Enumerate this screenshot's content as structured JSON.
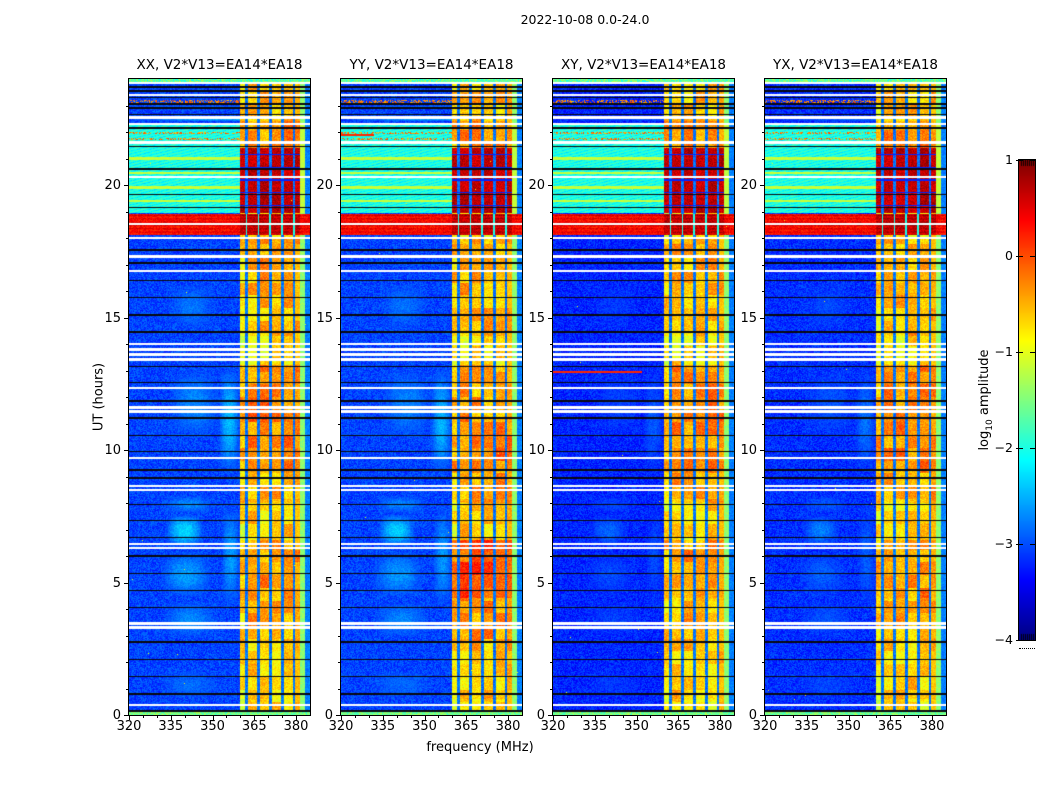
{
  "figure": {
    "title": "2022-10-08 0.0-24.0",
    "xlabel": "frequency (MHz)",
    "ylabel": "UT (hours)",
    "colorbar_label_pre": "log",
    "colorbar_label_sub": "10",
    "colorbar_label_post": " amplitude"
  },
  "chart_data": {
    "type": "heatmap",
    "title": "2022-10-08 0.0-24.0",
    "xlabel": "frequency (MHz)",
    "ylabel": "UT (hours)",
    "x_range": [
      320,
      385
    ],
    "y_range": [
      0,
      24
    ],
    "x_ticks": [
      320,
      335,
      350,
      365,
      380
    ],
    "x_tick_labels": [
      "320",
      "335",
      "350",
      "365",
      "380"
    ],
    "x_minor_ticks": [
      325,
      330,
      340,
      345,
      355,
      360,
      370,
      375
    ],
    "y_ticks": [
      0,
      5,
      10,
      15,
      20
    ],
    "y_tick_labels": [
      "0",
      "5",
      "10",
      "15",
      "20"
    ],
    "colorbar": {
      "label": "log10 amplitude",
      "cmap": "jet",
      "vmin": -4,
      "vmax": 1,
      "ticks": [
        1,
        0,
        -1,
        -2,
        -3,
        -4
      ],
      "tick_labels": [
        "1",
        "0",
        "−1",
        "−2",
        "−3",
        "−4"
      ],
      "end_hatch": true
    },
    "panels": [
      {
        "label": "XX",
        "title": "XX, V2*V13=EA14*EA18",
        "seed": 11,
        "background": -3.3,
        "patch_strength": 1.0,
        "band_segments": [
          [
            0,
            0.6,
            0.1
          ],
          [
            0.6,
            2.8,
            0.2
          ],
          [
            2.8,
            4.4,
            0.35
          ],
          [
            4.4,
            6.6,
            0.45
          ],
          [
            6.6,
            8,
            0.15
          ],
          [
            8,
            9.3,
            0.35
          ],
          [
            9.3,
            13.2,
            0.55
          ],
          [
            13.2,
            14.3,
            0.05
          ],
          [
            14.3,
            16.4,
            0.25
          ],
          [
            16.4,
            18,
            0.35
          ],
          [
            21.4,
            22.4,
            0.45
          ],
          [
            22.4,
            23.9,
            0.25
          ]
        ],
        "red_lines": []
      },
      {
        "label": "YY",
        "title": "YY, V2*V13=EA14*EA18",
        "seed": 22,
        "background": -3.3,
        "patch_strength": 0.95,
        "band_segments": [
          [
            0,
            0.6,
            0.1
          ],
          [
            0.6,
            2.8,
            0.25
          ],
          [
            2.8,
            4.4,
            0.45
          ],
          [
            4.4,
            6.6,
            0.8
          ],
          [
            6.6,
            8,
            0.2
          ],
          [
            8,
            9.3,
            0.4
          ],
          [
            9.3,
            11.3,
            0.55
          ],
          [
            11.3,
            13.2,
            0.4
          ],
          [
            13.2,
            14.3,
            0.05
          ],
          [
            14.3,
            16.4,
            0.3
          ],
          [
            16.4,
            18,
            0.35
          ],
          [
            21.4,
            22.4,
            0.5
          ],
          [
            22.4,
            23.9,
            0.3
          ]
        ],
        "red_lines": [
          [
            21.9,
            332
          ]
        ]
      },
      {
        "label": "XY",
        "title": "XY, V2*V13=EA14*EA18",
        "seed": 33,
        "background": -3.45,
        "patch_strength": 0.5,
        "band_segments": [
          [
            0,
            0.6,
            0.05
          ],
          [
            0.6,
            2.8,
            0.2
          ],
          [
            2.8,
            4.4,
            0.3
          ],
          [
            4.4,
            6.6,
            0.45
          ],
          [
            6.6,
            8,
            0.15
          ],
          [
            8,
            9.3,
            0.35
          ],
          [
            9.3,
            13.2,
            0.5
          ],
          [
            13.2,
            14.3,
            0.05
          ],
          [
            14.3,
            16.4,
            0.25
          ],
          [
            16.4,
            18,
            0.3
          ],
          [
            21.4,
            22.4,
            0.45
          ],
          [
            22.4,
            23.9,
            0.25
          ]
        ],
        "red_lines": [
          [
            12.95,
            352
          ]
        ]
      },
      {
        "label": "YX",
        "title": "YX, V2*V13=EA14*EA18",
        "seed": 44,
        "background": -3.4,
        "patch_strength": 0.6,
        "band_segments": [
          [
            0,
            0.6,
            0.05
          ],
          [
            0.6,
            2.8,
            0.2
          ],
          [
            2.8,
            4.4,
            0.3
          ],
          [
            4.4,
            6.6,
            0.45
          ],
          [
            6.6,
            8,
            0.15
          ],
          [
            8,
            9.3,
            0.35
          ],
          [
            9.3,
            13.2,
            0.5
          ],
          [
            13.2,
            14.3,
            0.05
          ],
          [
            14.3,
            16.4,
            0.25
          ],
          [
            16.4,
            18,
            0.3
          ],
          [
            21.4,
            22.4,
            0.45
          ],
          [
            22.4,
            23.9,
            0.25
          ]
        ],
        "red_lines": []
      }
    ],
    "features": {
      "band": {
        "f_start": 360,
        "f_end": 381.5,
        "base": -1.05,
        "separators": [
          362.2,
          366.5,
          370.8,
          375.1,
          379.2
        ],
        "edge_green": [
          381.5,
          383.3
        ]
      },
      "red_band": {
        "t_start": 18.1,
        "t_end": 18.9
      },
      "block_band": {
        "t_start": 18.95,
        "t_end": 21.4
      },
      "cyan_region": {
        "t_start": 18.95,
        "t_end": 22.35
      },
      "white_gaps": [
        [
          0.38,
          0.042
        ],
        [
          3.3,
          0.042
        ],
        [
          3.45,
          0.042
        ],
        [
          6.3,
          0.042
        ],
        [
          6.45,
          0.042
        ],
        [
          8.5,
          0.042
        ],
        [
          8.65,
          0.042
        ],
        [
          9.7,
          0.042
        ],
        [
          11.45,
          0.042
        ],
        [
          11.6,
          0.042
        ],
        [
          12.35,
          0.042
        ],
        [
          13.42,
          0.05
        ],
        [
          13.6,
          0.065
        ],
        [
          13.8,
          0.065
        ],
        [
          14.0,
          0.05
        ],
        [
          16.75,
          0.042
        ],
        [
          17.3,
          0.042
        ],
        [
          18.0,
          0.05
        ],
        [
          18.52,
          0.035
        ],
        [
          20.3,
          0.042
        ],
        [
          21.6,
          0.042
        ],
        [
          22.3,
          0.042
        ],
        [
          22.55,
          0.042
        ],
        [
          23.4,
          0.042
        ],
        [
          23.85,
          0.05
        ]
      ],
      "dark_lines": [
        0.15,
        0.8,
        1.45,
        2.1,
        2.75,
        4.05,
        4.7,
        5.35,
        6.0,
        6.7,
        7.35,
        7.95,
        8.95,
        9.25,
        9.95,
        10.55,
        11.2,
        11.85,
        12.55,
        13.15,
        14.45,
        15.1,
        15.75,
        16.4,
        17.05,
        17.55,
        19.15,
        19.65,
        20.6,
        21.45,
        22.15,
        22.5,
        22.65,
        22.9,
        23.05,
        23.3,
        23.55,
        23.7
      ],
      "green_lines": [
        19.4,
        19.9,
        20.45,
        21.0
      ],
      "speckle_rows": [
        21.75,
        21.95,
        23.15
      ],
      "patches": [
        [
          0.6,
          1.7,
          331,
          353,
          -2.85
        ],
        [
          2.9,
          4.3,
          332,
          352,
          -2.7
        ],
        [
          4.4,
          6.2,
          331,
          350,
          -2.6
        ],
        [
          6.3,
          7.6,
          333,
          347,
          -2.3
        ],
        [
          7.6,
          8.3,
          332,
          351,
          -2.7
        ],
        [
          9.0,
          13.2,
          352,
          360,
          -2.45
        ],
        [
          10.4,
          13.1,
          334,
          353,
          -2.7
        ],
        [
          14.5,
          16.3,
          334,
          351,
          -2.8
        ],
        [
          4.0,
          8.0,
          353,
          360,
          -2.6
        ],
        [
          22.4,
          22.6,
          321,
          384,
          -2.5
        ],
        [
          22.85,
          23.0,
          321,
          384,
          -2.8
        ]
      ]
    }
  }
}
